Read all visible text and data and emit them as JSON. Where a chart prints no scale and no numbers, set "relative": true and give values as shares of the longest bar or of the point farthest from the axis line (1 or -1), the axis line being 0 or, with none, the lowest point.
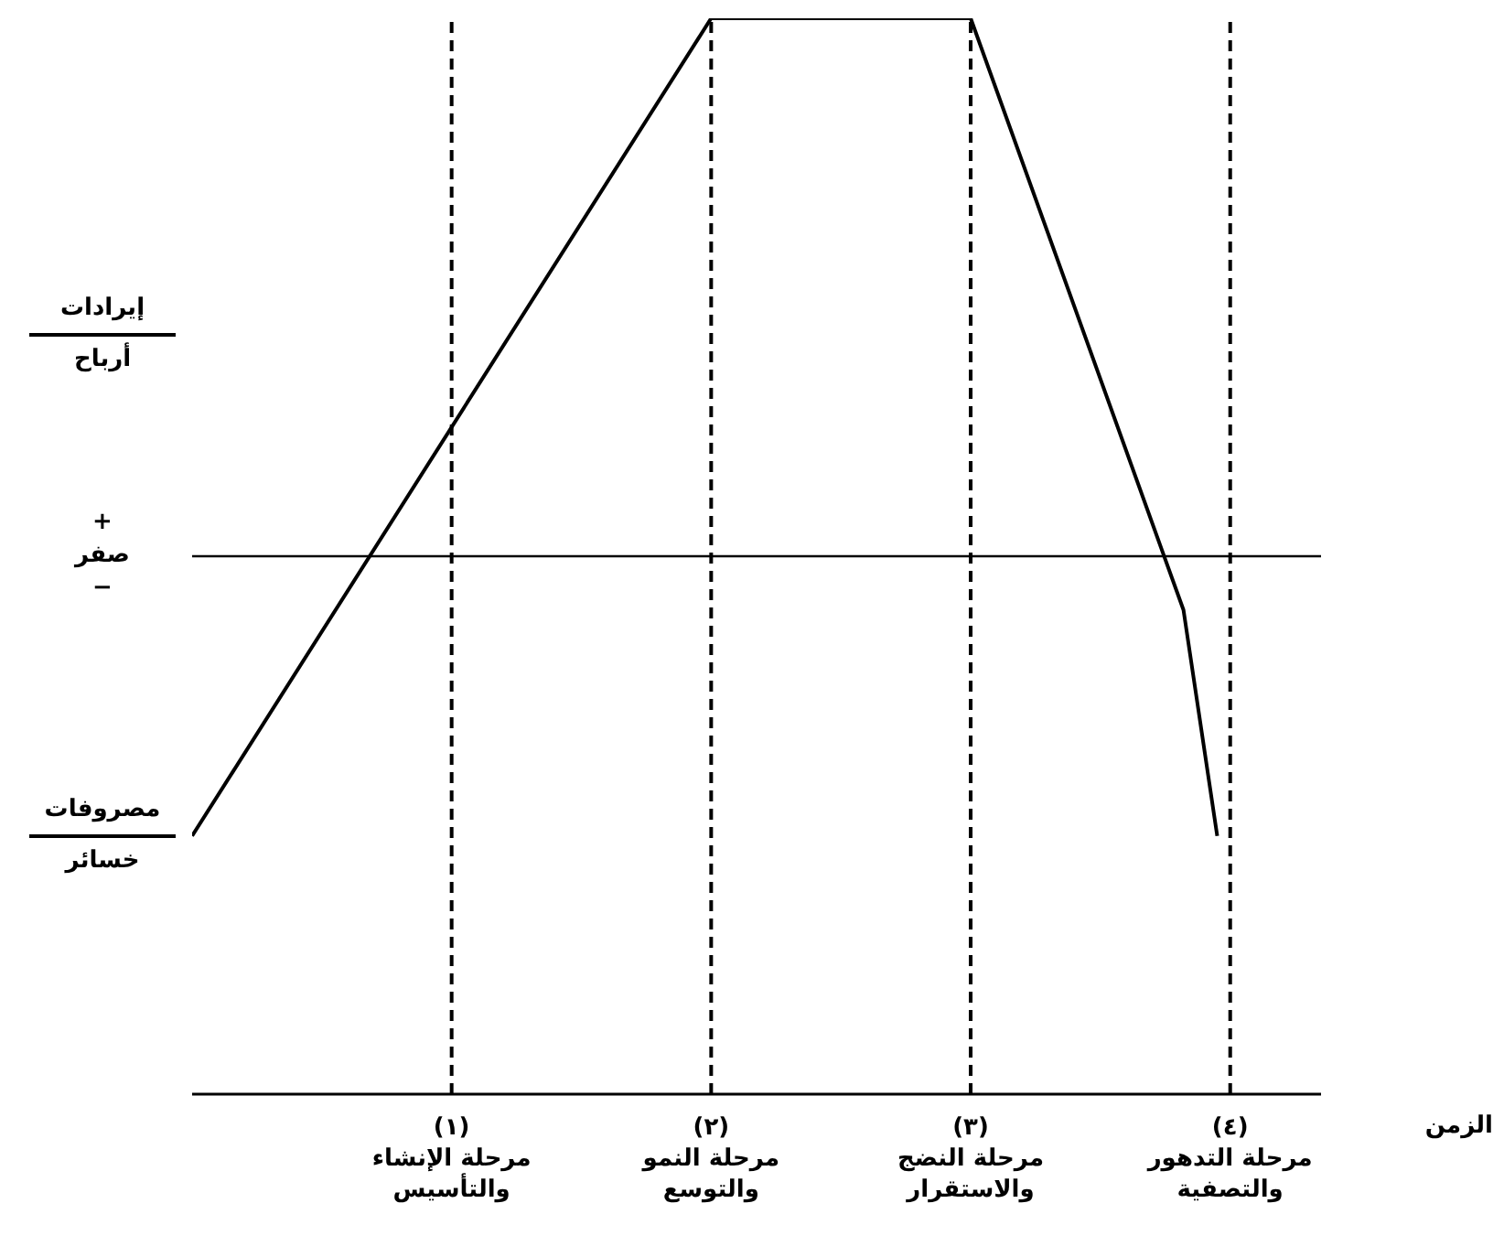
{
  "chart_data": {
    "type": "line",
    "relative": true,
    "xlabel": "الزمن",
    "x": [
      0,
      2,
      3,
      3.82,
      3.95
    ],
    "series": [
      {
        "color": "#000000",
        "values": [
          -0.52,
          1,
          1,
          -0.1,
          -0.52
        ]
      }
    ],
    "xlim": [
      0,
      4.35
    ],
    "xticks": [
      {
        "value": 1,
        "label": "(١)\nمرحلة الإنشاء\nوالتأسيس"
      },
      {
        "value": 2,
        "label": "(٢)\nمرحلة النمو\nوالتوسع"
      },
      {
        "value": 3,
        "label": "(٣)\nمرحلة النضج\nوالاستقرار"
      },
      {
        "value": 4,
        "label": "(٤)\nمرحلة التدهور\nوالتصفية"
      }
    ],
    "ref_lines": [
      {
        "axis": "y",
        "value": 0,
        "line_style": "solid",
        "color": "#000000"
      },
      {
        "axis": "x",
        "value": 1,
        "line_style": "dashed",
        "color": "#000000"
      },
      {
        "axis": "x",
        "value": 2,
        "line_style": "dashed",
        "color": "#000000"
      },
      {
        "axis": "x",
        "value": 3,
        "line_style": "dashed",
        "color": "#000000"
      },
      {
        "axis": "x",
        "value": 4,
        "line_style": "dashed",
        "color": "#000000"
      }
    ],
    "annotations": [
      "إيرادات",
      "أرباح",
      "+",
      "صفر",
      "−",
      "مصروفات",
      "خسائر"
    ],
    "grid": false,
    "legend": false,
    "marker": "none",
    "line_style": "solid"
  }
}
